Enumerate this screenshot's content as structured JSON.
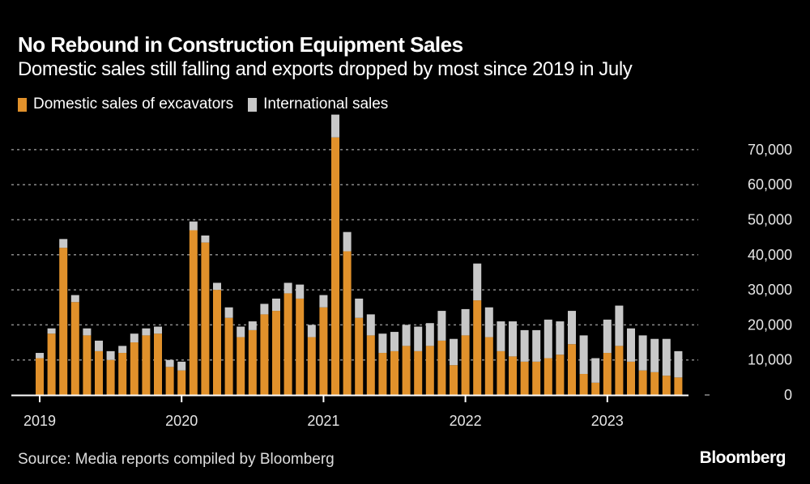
{
  "header": {
    "title": "No Rebound in Construction Equipment Sales",
    "subtitle": "Domestic sales still falling and exports dropped by most since 2019 in July"
  },
  "legend": [
    {
      "label": "Domestic sales of excavators",
      "color": "#e1912b"
    },
    {
      "label": "International sales",
      "color": "#c8c8c8"
    }
  ],
  "footer": {
    "source": "Source: Media reports compiled by Bloomberg",
    "brand": "Bloomberg"
  },
  "chart_data": {
    "type": "bar",
    "stacked": true,
    "title": "No Rebound in Construction Equipment Sales",
    "subtitle": "Domestic sales still falling and exports dropped by most since 2019 in July",
    "xlabel": "",
    "ylabel": "",
    "ylim": [
      0,
      80000
    ],
    "yticks": [
      0,
      10000,
      20000,
      30000,
      40000,
      50000,
      60000,
      70000
    ],
    "ytick_labels": [
      "0",
      "10,000",
      "20,000",
      "30,000",
      "40,000",
      "50,000",
      "60,000",
      "70,000"
    ],
    "xtick_labels": [
      "2019",
      "2020",
      "2021",
      "2022",
      "2023"
    ],
    "xtick_indices": [
      0,
      12,
      24,
      36,
      48
    ],
    "grid": true,
    "legend_position": "top-left",
    "categories": [
      "2019-01",
      "2019-02",
      "2019-03",
      "2019-04",
      "2019-05",
      "2019-06",
      "2019-07",
      "2019-08",
      "2019-09",
      "2019-10",
      "2019-11",
      "2019-12",
      "2020-01",
      "2020-02",
      "2020-03",
      "2020-04",
      "2020-05",
      "2020-06",
      "2020-07",
      "2020-08",
      "2020-09",
      "2020-10",
      "2020-11",
      "2020-12",
      "2021-01",
      "2021-02",
      "2021-03",
      "2021-04",
      "2021-05",
      "2021-06",
      "2021-07",
      "2021-08",
      "2021-09",
      "2021-10",
      "2021-11",
      "2021-12",
      "2022-01",
      "2022-02",
      "2022-03",
      "2022-04",
      "2022-05",
      "2022-06",
      "2022-07",
      "2022-08",
      "2022-09",
      "2022-10",
      "2022-11",
      "2022-12",
      "2023-01",
      "2023-02",
      "2023-03",
      "2023-04",
      "2023-05",
      "2023-06",
      "2023-07"
    ],
    "series": [
      {
        "name": "Domestic sales of excavators",
        "color": "#e1912b",
        "values": [
          10500,
          17500,
          42000,
          26500,
          17000,
          12500,
          10000,
          12000,
          15000,
          17000,
          17500,
          8000,
          7000,
          47000,
          43500,
          30000,
          22000,
          16500,
          18500,
          23000,
          24000,
          29000,
          27500,
          16500,
          25000,
          73500,
          41000,
          22000,
          17000,
          12000,
          12500,
          14000,
          12500,
          14000,
          15500,
          8500,
          17000,
          27000,
          16500,
          12500,
          11000,
          9500,
          9500,
          10500,
          11500,
          14500,
          6000,
          3500,
          12000,
          14000,
          9500,
          7000,
          6500,
          5500,
          5000
        ]
      },
      {
        "name": "International sales",
        "color": "#c8c8c8",
        "values": [
          1500,
          1500,
          2500,
          2000,
          2000,
          3000,
          2500,
          2000,
          2500,
          2000,
          2000,
          2000,
          2500,
          2500,
          2000,
          2000,
          3000,
          3000,
          2500,
          3000,
          3500,
          3000,
          4000,
          3500,
          3500,
          6500,
          5500,
          5500,
          6000,
          5500,
          5500,
          6000,
          7000,
          6500,
          8500,
          7500,
          7500,
          10500,
          8500,
          8500,
          10000,
          9000,
          9000,
          11000,
          9500,
          9500,
          11000,
          7000,
          9500,
          11500,
          9500,
          10000,
          9500,
          10500,
          7500
        ]
      }
    ]
  }
}
